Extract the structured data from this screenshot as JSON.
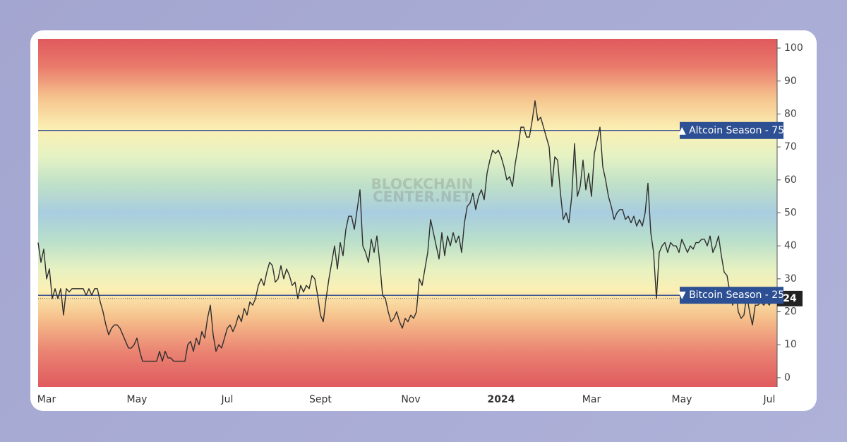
{
  "chart_data": {
    "type": "line",
    "color": "#2f2f2f",
    "watermark": [
      "BLOCKCHAIN",
      "CENTER.NET"
    ],
    "categories": [
      null,
      null,
      null,
      "Mar",
      null,
      null,
      null,
      null,
      null,
      null,
      null,
      null,
      null,
      null,
      null,
      null,
      null,
      null,
      null,
      null,
      null,
      null,
      null,
      null,
      null,
      null,
      null,
      null,
      null,
      null,
      null,
      null,
      null,
      null,
      null,
      "May",
      null,
      null,
      null,
      null,
      null,
      null,
      null,
      null,
      null,
      null,
      null,
      null,
      null,
      null,
      null,
      null,
      null,
      null,
      null,
      null,
      null,
      null,
      null,
      null,
      null,
      null,
      null,
      null,
      null,
      null,
      null,
      "Jul",
      null,
      null,
      null,
      null,
      null,
      null,
      null,
      null,
      null,
      null,
      null,
      null,
      null,
      null,
      null,
      null,
      null,
      null,
      null,
      null,
      null,
      null,
      null,
      null,
      null,
      null,
      null,
      null,
      null,
      null,
      null,
      null,
      "Sept",
      null,
      null,
      null,
      null,
      null,
      null,
      null,
      null,
      null,
      null,
      null,
      null,
      null,
      null,
      null,
      null,
      null,
      null,
      null,
      null,
      null,
      null,
      null,
      null,
      null,
      null,
      null,
      null,
      null,
      null,
      null,
      "Nov",
      null,
      null,
      null,
      null,
      null,
      null,
      null,
      null,
      null,
      null,
      null,
      null,
      null,
      null,
      null,
      null,
      null,
      null,
      null,
      null,
      null,
      null,
      null,
      null,
      null,
      null,
      null,
      null,
      null,
      null,
      null,
      "2024",
      null,
      null,
      null,
      null,
      null,
      null,
      null,
      null,
      null,
      null,
      null,
      null,
      null,
      null,
      null,
      null,
      null,
      null,
      null,
      null,
      null,
      null,
      null,
      null,
      null,
      null,
      null,
      null,
      null,
      null,
      null,
      "Mar",
      null,
      null,
      null,
      null,
      null,
      null,
      null,
      null,
      null,
      null,
      null,
      null,
      null,
      null,
      null,
      null,
      null,
      null,
      null,
      null,
      null,
      null,
      null,
      null,
      null,
      null,
      null,
      null,
      null,
      null,
      null,
      "May",
      null,
      null,
      null,
      null,
      null,
      null,
      null,
      null,
      null,
      null,
      null,
      null,
      null,
      null,
      null,
      null,
      null,
      null,
      null,
      null,
      null,
      null,
      null,
      null,
      null,
      null,
      null,
      null,
      null,
      null,
      "Jul",
      null,
      null,
      null
    ],
    "values": [
      41,
      35,
      39,
      30,
      33,
      24,
      27,
      24,
      27,
      19,
      27,
      26,
      27,
      27,
      27,
      27,
      27,
      25,
      27,
      25,
      27,
      27,
      23,
      20,
      16,
      13,
      15,
      16,
      16,
      15,
      13,
      11,
      9,
      9,
      10,
      12,
      8,
      5,
      5,
      5,
      5,
      5,
      5,
      8,
      5,
      8,
      6,
      6,
      5,
      5,
      5,
      5,
      5,
      10,
      11,
      8,
      12,
      10,
      14,
      12,
      18,
      22,
      13,
      8,
      10,
      9,
      12,
      15,
      16,
      14,
      16,
      19,
      17,
      21,
      19,
      23,
      22,
      24,
      28,
      30,
      28,
      32,
      35,
      34,
      29,
      30,
      34,
      30,
      33,
      31,
      28,
      29,
      24,
      28,
      26,
      28,
      27,
      31,
      30,
      25,
      19,
      17,
      24,
      30,
      35,
      40,
      33,
      41,
      37,
      45,
      49,
      49,
      45,
      51,
      57,
      40,
      38,
      35,
      42,
      38,
      43,
      35,
      25,
      24,
      20,
      17,
      18,
      20,
      17,
      15,
      18,
      17,
      19,
      18,
      20,
      30,
      28,
      33,
      38,
      48,
      44,
      40,
      36,
      44,
      37,
      43,
      40,
      44,
      41,
      43,
      38,
      47,
      52,
      53,
      56,
      51,
      55,
      57,
      54,
      62,
      66,
      69,
      68,
      69,
      67,
      64,
      60,
      61,
      58,
      65,
      70,
      76,
      76,
      73,
      73,
      78,
      84,
      78,
      79,
      76,
      73,
      70,
      58,
      67,
      66,
      56,
      48,
      50,
      47,
      55,
      71,
      55,
      58,
      66,
      57,
      62,
      55,
      68,
      72,
      76,
      64,
      60,
      55,
      52,
      48,
      50,
      51,
      51,
      48,
      49,
      47,
      49,
      46,
      48,
      46,
      50,
      59,
      44,
      38,
      24,
      38,
      40,
      41,
      38,
      41,
      40,
      40,
      38,
      42,
      40,
      38,
      40,
      39,
      41,
      41,
      42,
      42,
      40,
      43,
      38,
      40,
      43,
      37,
      32,
      31,
      26,
      22,
      27,
      20,
      18,
      19,
      25,
      20,
      16,
      22,
      22,
      23,
      22,
      23,
      22,
      24,
      27,
      24
    ],
    "ylim": [
      -2.8,
      102.8
    ],
    "yticks": [
      0,
      10,
      20,
      30,
      40,
      50,
      60,
      70,
      80,
      90,
      100
    ],
    "annotations": [
      {
        "label": "▲ Altcoin Season - 75",
        "value": 75
      },
      {
        "label": "▼ Bitcoin Season - 25",
        "value": 25
      }
    ]
  }
}
